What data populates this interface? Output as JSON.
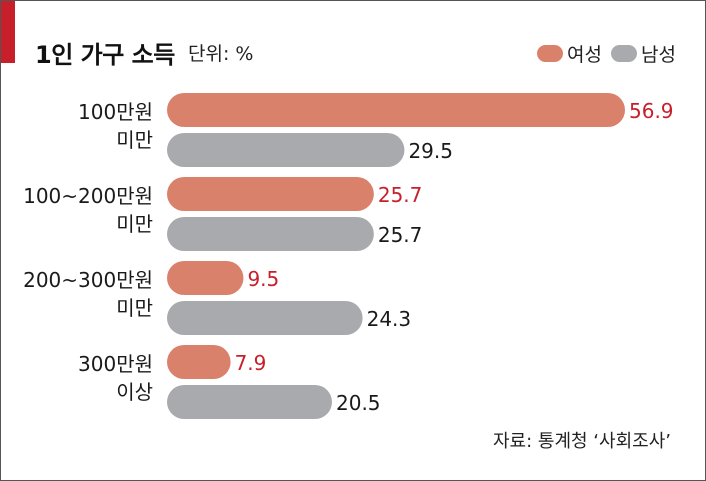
{
  "title": "1인 가구 소득",
  "unit": "단위: %",
  "source": "자료: 통계청 ‘사회조사’",
  "colors": {
    "female": "#d9816a",
    "male": "#a9aaad",
    "female_text": "#c8202b",
    "male_text": "#1a1a1a",
    "accent": "#c8202b"
  },
  "chart_data": {
    "type": "bar",
    "orientation": "horizontal",
    "categories": [
      [
        "100만원",
        "미만"
      ],
      [
        "100~200만원",
        "미만"
      ],
      [
        "200~300만원",
        "미만"
      ],
      [
        "300만원",
        "이상"
      ]
    ],
    "series": [
      {
        "name": "여성",
        "values": [
          56.9,
          25.7,
          9.5,
          7.9
        ],
        "labels": [
          "56.9",
          "25.7",
          "9.5",
          "7.9"
        ]
      },
      {
        "name": "남성",
        "values": [
          29.5,
          25.7,
          24.3,
          20.5
        ],
        "labels": [
          "29.5",
          "25.7",
          "24.3",
          "20.5"
        ]
      }
    ],
    "xlim": [
      0,
      56.9
    ],
    "grid": false,
    "legend": "top-right"
  }
}
